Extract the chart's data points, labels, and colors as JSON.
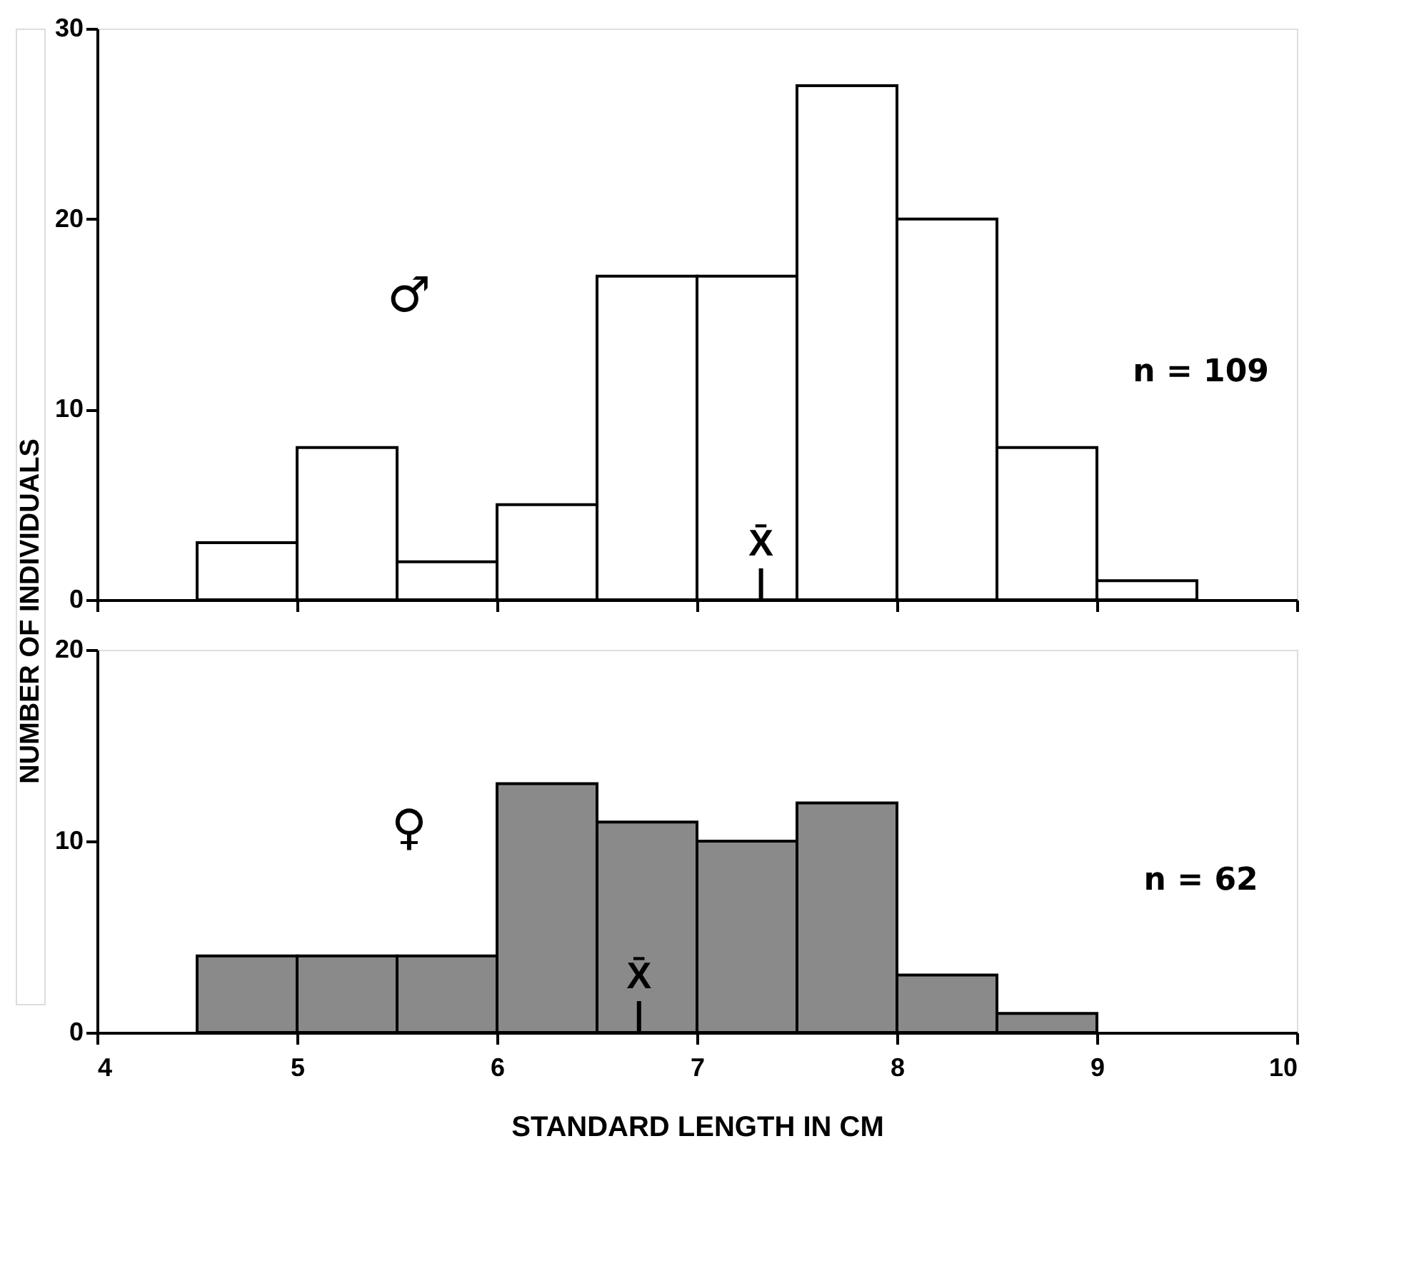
{
  "chart_data": [
    {
      "type": "histogram",
      "ylabel": "NUMBER OF INDIVIDUALS",
      "bins": [
        4.5,
        5,
        5.5,
        6,
        6.5,
        7,
        7.5,
        8,
        8.5,
        9,
        9.5
      ],
      "values": [
        3,
        8,
        2,
        5,
        17,
        17,
        27,
        20,
        8,
        1
      ],
      "color": "#ffffff",
      "xlim": [
        4,
        10
      ],
      "xticks": [
        4,
        5,
        6,
        7,
        8,
        9,
        10
      ],
      "ylim": [
        0,
        30
      ],
      "yticks": [
        0,
        10,
        20,
        30
      ],
      "tick_labels": "y",
      "grid": false,
      "ref_lines": [
        {
          "axis": "x",
          "value": 7.32,
          "label": "X̄"
        }
      ],
      "annotations": [
        "♂",
        "n = 109"
      ]
    },
    {
      "type": "histogram",
      "xlabel": "STANDARD LENGTH IN CM",
      "bins": [
        4.5,
        5,
        5.5,
        6,
        6.5,
        7,
        7.5,
        8,
        8.5,
        9
      ],
      "values": [
        4,
        4,
        4,
        13,
        11,
        10,
        12,
        3,
        1
      ],
      "color": "#8a8a8a",
      "xlim": [
        4,
        10
      ],
      "xticks": [
        4,
        5,
        6,
        7,
        8,
        9,
        10
      ],
      "ylim": [
        0,
        20
      ],
      "yticks": [
        0,
        10,
        20
      ],
      "grid": false,
      "ref_lines": [
        {
          "axis": "x",
          "value": 6.71,
          "label": "X̄"
        }
      ],
      "annotations": [
        "♀",
        "n = 62"
      ]
    }
  ]
}
